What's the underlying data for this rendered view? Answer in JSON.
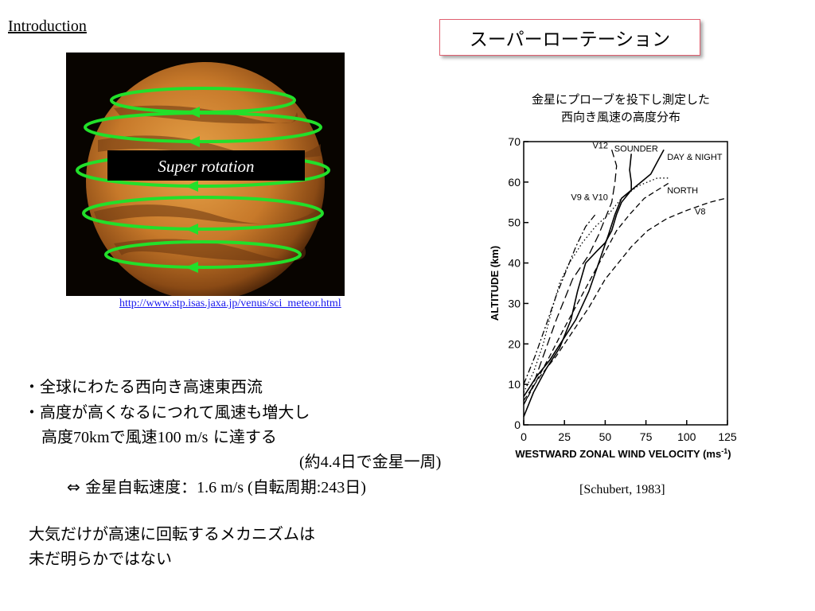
{
  "header": {
    "section": "Introduction",
    "title": "スーパーローテーション"
  },
  "figure": {
    "overlay_label": "Super rotation",
    "url": "http://www.stp.isas.jaxa.jp/venus/sci_meteor.html"
  },
  "chart_caption": [
    "金星にプローブを投下し測定した",
    "西向き風速の高度分布"
  ],
  "citation": "[Schubert, 1983]",
  "bullets": {
    "line1": "・全球にわたる西向き高速東西流",
    "line2": "・高度が高くなるにつれて風速も増大し",
    "line3_a": "高度",
    "line3_b": "70km",
    "line3_c": "で風速",
    "line3_d": "100 m/s",
    "line3_e": " に達する",
    "line4_a": "(約",
    "line4_b": "4.4",
    "line4_c": "日で金星一周",
    "line4_d": ")",
    "line5_a": "⇔ 金星自転速度",
    "line5_b": "：1.6 m/s (",
    "line5_c": "自転周期",
    "line5_d": ":243",
    "line5_e": "日",
    "line5_f": ")",
    "line6": "大気だけが高速に回転するメカニズムは",
    "line7": "未だ明らかではない"
  },
  "chart_data": {
    "type": "line",
    "xlabel": "WESTWARD ZONAL WIND VELOCITY (ms",
    "xlabel_sup": "-1",
    "xlabel_end": ")",
    "ylabel": "ALTITUDE (km)",
    "xlim": [
      0,
      125
    ],
    "ylim": [
      0,
      70
    ],
    "xticks": [
      0,
      25,
      50,
      75,
      100,
      125
    ],
    "yticks": [
      0,
      10,
      20,
      30,
      40,
      50,
      60,
      70
    ],
    "series": [
      {
        "name": "V12",
        "style": "longdash",
        "points": [
          [
            0,
            5
          ],
          [
            5,
            9
          ],
          [
            12,
            17
          ],
          [
            20,
            26
          ],
          [
            30,
            36
          ],
          [
            40,
            42
          ],
          [
            46,
            47
          ],
          [
            50,
            51
          ],
          [
            54,
            55
          ],
          [
            56,
            60
          ],
          [
            57,
            64
          ],
          [
            54,
            68
          ]
        ]
      },
      {
        "name": "SOUNDER",
        "style": "solid",
        "points": [
          [
            0,
            2
          ],
          [
            6,
            8
          ],
          [
            14,
            14
          ],
          [
            22,
            19
          ],
          [
            29,
            26
          ],
          [
            33,
            33
          ],
          [
            38,
            40
          ],
          [
            45,
            43
          ],
          [
            50,
            45
          ],
          [
            54,
            48
          ],
          [
            57,
            52
          ],
          [
            60,
            55
          ],
          [
            64,
            57
          ],
          [
            66,
            58
          ],
          [
            66,
            60
          ],
          [
            65,
            63
          ],
          [
            66,
            67
          ]
        ]
      },
      {
        "name": "DAY & NIGHT",
        "style": "solid",
        "points": [
          [
            0,
            7
          ],
          [
            8,
            12
          ],
          [
            16,
            16
          ],
          [
            24,
            21
          ],
          [
            32,
            26
          ],
          [
            40,
            33
          ],
          [
            46,
            40
          ],
          [
            52,
            47
          ],
          [
            56,
            52
          ],
          [
            60,
            56
          ],
          [
            66,
            58
          ],
          [
            72,
            60
          ],
          [
            78,
            62
          ],
          [
            82,
            65
          ],
          [
            86,
            68
          ]
        ]
      },
      {
        "name": "V9 & V10",
        "style": "dotted",
        "points": [
          [
            0,
            8
          ],
          [
            6,
            13
          ],
          [
            12,
            20
          ],
          [
            17,
            28
          ],
          [
            22,
            35
          ],
          [
            28,
            40
          ],
          [
            36,
            45
          ],
          [
            44,
            49
          ],
          [
            52,
            52
          ],
          [
            60,
            56
          ],
          [
            70,
            59
          ],
          [
            82,
            61
          ],
          [
            90,
            61
          ]
        ]
      },
      {
        "name": "NORTH",
        "style": "dash",
        "points": [
          [
            0,
            5
          ],
          [
            8,
            11
          ],
          [
            16,
            17
          ],
          [
            25,
            24
          ],
          [
            33,
            30
          ],
          [
            41,
            36
          ],
          [
            49,
            42
          ],
          [
            57,
            48
          ],
          [
            65,
            52
          ],
          [
            74,
            56
          ],
          [
            82,
            58
          ],
          [
            90,
            60
          ]
        ]
      },
      {
        "name": "V8",
        "style": "dash",
        "points": [
          [
            0,
            6
          ],
          [
            10,
            12
          ],
          [
            20,
            17
          ],
          [
            30,
            23
          ],
          [
            40,
            29
          ],
          [
            50,
            36
          ],
          [
            58,
            40
          ],
          [
            66,
            44
          ],
          [
            76,
            48
          ],
          [
            88,
            51
          ],
          [
            100,
            53
          ],
          [
            114,
            55
          ],
          [
            124,
            56
          ]
        ]
      },
      {
        "name": "",
        "style": "dashdot",
        "points": [
          [
            0,
            10
          ],
          [
            7,
            17
          ],
          [
            14,
            25
          ],
          [
            20,
            32
          ],
          [
            26,
            38
          ],
          [
            32,
            44
          ],
          [
            38,
            49
          ],
          [
            44,
            52
          ]
        ]
      }
    ]
  }
}
